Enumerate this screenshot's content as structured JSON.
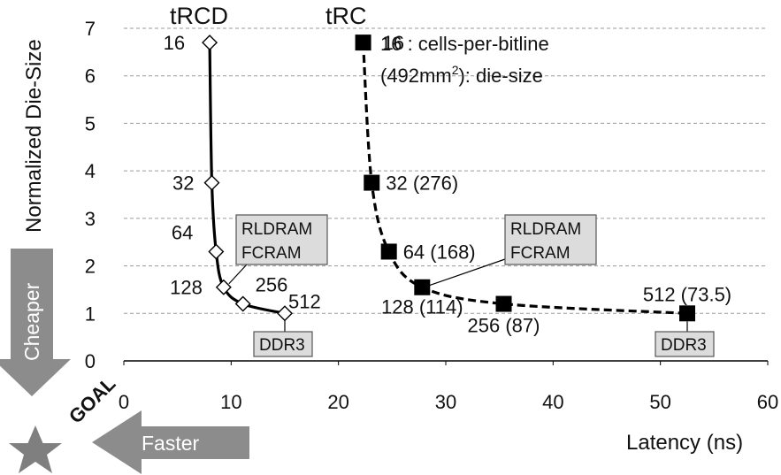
{
  "chart_data": {
    "type": "line",
    "xlabel": "Latency (ns)",
    "ylabel": "Normalized Die-Size",
    "xlim": [
      0,
      60
    ],
    "ylim": [
      0,
      7
    ],
    "xticks": [
      "0",
      "10",
      "20",
      "30",
      "40",
      "50",
      "60"
    ],
    "yticks": [
      "0",
      "1",
      "2",
      "3",
      "4",
      "5",
      "6",
      "7"
    ],
    "grid": "horizontal dashed",
    "series": [
      {
        "name": "tRCD",
        "marker": "open-diamond",
        "line": "solid",
        "x": [
          8.0,
          8.2,
          8.6,
          9.3,
          11.1,
          15.0
        ],
        "y": [
          6.7,
          3.75,
          2.3,
          1.55,
          1.2,
          1.0
        ],
        "labels": [
          "16",
          "32",
          "64",
          "128",
          "256",
          "512"
        ]
      },
      {
        "name": "tRC",
        "marker": "filled-square",
        "line": "dashed",
        "x": [
          22.3,
          23.1,
          24.7,
          27.8,
          35.4,
          52.5
        ],
        "y": [
          6.7,
          3.75,
          2.3,
          1.55,
          1.2,
          1.0
        ],
        "labels": [
          "16",
          "32 (276)",
          "64 (168)",
          "128 (114)",
          "256 (87)",
          "512 (73.5)"
        ]
      }
    ],
    "legend_notes": {
      "line1": "16 : cells-per-bitline",
      "line2_pre": "(492mm",
      "line2_sup": "2",
      "line2_post": "): die-size"
    },
    "callouts": {
      "rldram_fcram": [
        "RLDRAM",
        "FCRAM"
      ],
      "ddr3": "DDR3"
    },
    "annotations": {
      "cheaper": "Cheaper",
      "faster": "Faster",
      "goal": "GOAL"
    },
    "colors": {
      "ink": "#000000",
      "grid": "#9a9a9a",
      "arrow": "#8c8c8c",
      "box": "#dcdcdc"
    }
  }
}
